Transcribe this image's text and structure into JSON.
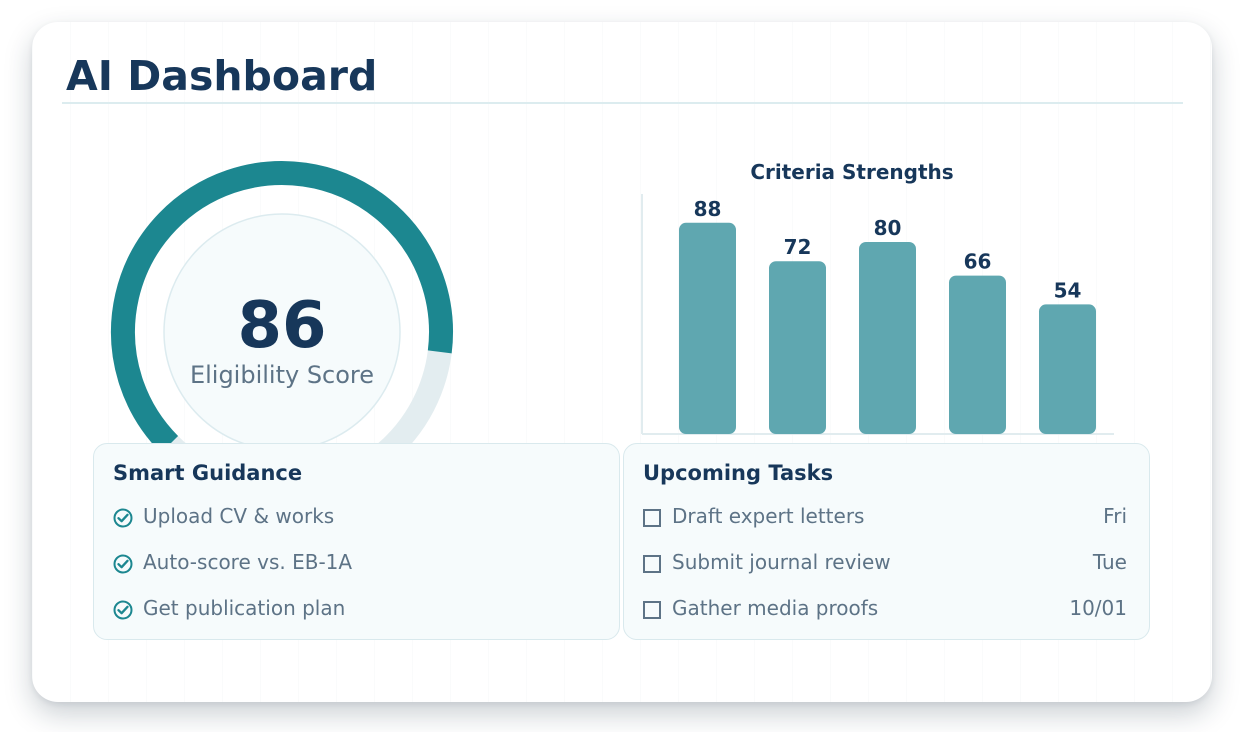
{
  "dashboard": {
    "title": "AI Dashboard"
  },
  "gauge": {
    "value": 86,
    "label": "Eligibility Score",
    "max": 100,
    "progress_color": "#1c8790",
    "track_color": "#e3edf0"
  },
  "chart_data": {
    "type": "bar",
    "title": "Criteria Strengths",
    "categories": [
      "",
      "",
      "",
      "",
      ""
    ],
    "values": [
      88,
      72,
      80,
      66,
      54
    ],
    "ylim": [
      0,
      100
    ],
    "xlabel": "",
    "ylabel": "",
    "grid": false,
    "bar_color": "#5fa7b0"
  },
  "guidance": {
    "title": "Smart Guidance",
    "items": [
      {
        "label": "Upload CV & works",
        "icon": "check-circle-icon"
      },
      {
        "label": "Auto-score vs. EB-1A",
        "icon": "check-circle-icon"
      },
      {
        "label": "Get publication plan",
        "icon": "check-circle-icon"
      }
    ]
  },
  "tasks": {
    "title": "Upcoming Tasks",
    "items": [
      {
        "label": "Draft expert letters",
        "due": "Fri",
        "icon": "checkbox-icon"
      },
      {
        "label": "Submit journal review",
        "due": "Tue",
        "icon": "checkbox-icon"
      },
      {
        "label": "Gather media proofs",
        "due": "10/01",
        "icon": "checkbox-icon"
      }
    ]
  }
}
